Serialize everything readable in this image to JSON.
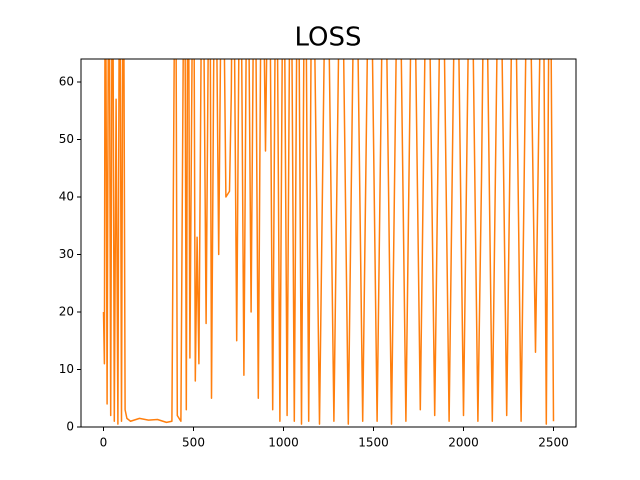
{
  "chart_data": {
    "type": "line",
    "title": "LOSS",
    "color": "#ff7f0e",
    "x": [
      0,
      5,
      10,
      20,
      30,
      40,
      50,
      60,
      70,
      80,
      90,
      100,
      110,
      120,
      130,
      150,
      200,
      250,
      300,
      350,
      380,
      400,
      410,
      430,
      450,
      460,
      470,
      480,
      500,
      510,
      520,
      530,
      550,
      570,
      590,
      600,
      620,
      640,
      660,
      680,
      700,
      710,
      720,
      740,
      760,
      780,
      800,
      820,
      840,
      860,
      880,
      900,
      920,
      940,
      960,
      980,
      1000,
      1020,
      1040,
      1060,
      1080,
      1100,
      1120,
      1140,
      1160,
      1200,
      1240,
      1280,
      1320,
      1360,
      1400,
      1440,
      1480,
      1520,
      1560,
      1600,
      1640,
      1680,
      1720,
      1760,
      1800,
      1840,
      1880,
      1920,
      1960,
      2000,
      2040,
      2080,
      2100,
      2120,
      2160,
      2200,
      2240,
      2280,
      2320,
      2360,
      2400,
      2440,
      2460,
      2480,
      2500
    ],
    "values": [
      20,
      11,
      100,
      4,
      100,
      2,
      100,
      1,
      57,
      0.5,
      100,
      1,
      100,
      3,
      1.5,
      1,
      1.5,
      1.2,
      1.3,
      0.8,
      1,
      100,
      2,
      1,
      100,
      3,
      100,
      12,
      100,
      8,
      33,
      11,
      100,
      18,
      100,
      5,
      100,
      30,
      100,
      40,
      41,
      58,
      100,
      15,
      100,
      9,
      100,
      20,
      100,
      5,
      100,
      48,
      100,
      3,
      100,
      1,
      100,
      2,
      100,
      1,
      100,
      0.5,
      100,
      1,
      100,
      0.5,
      100,
      1,
      100,
      0.5,
      100,
      1,
      100,
      1,
      100,
      0.5,
      100,
      1,
      100,
      3,
      100,
      2,
      100,
      1,
      100,
      2,
      100,
      1,
      43,
      100,
      1,
      100,
      2,
      100,
      1,
      100,
      13,
      100,
      0.5,
      100,
      1
    ],
    "xlim": [
      -125,
      2625
    ],
    "ylim": [
      0,
      64
    ],
    "xticks": [
      0,
      500,
      1000,
      1500,
      2000,
      2500
    ],
    "yticks": [
      0,
      10,
      20,
      30,
      40,
      50,
      60
    ]
  }
}
